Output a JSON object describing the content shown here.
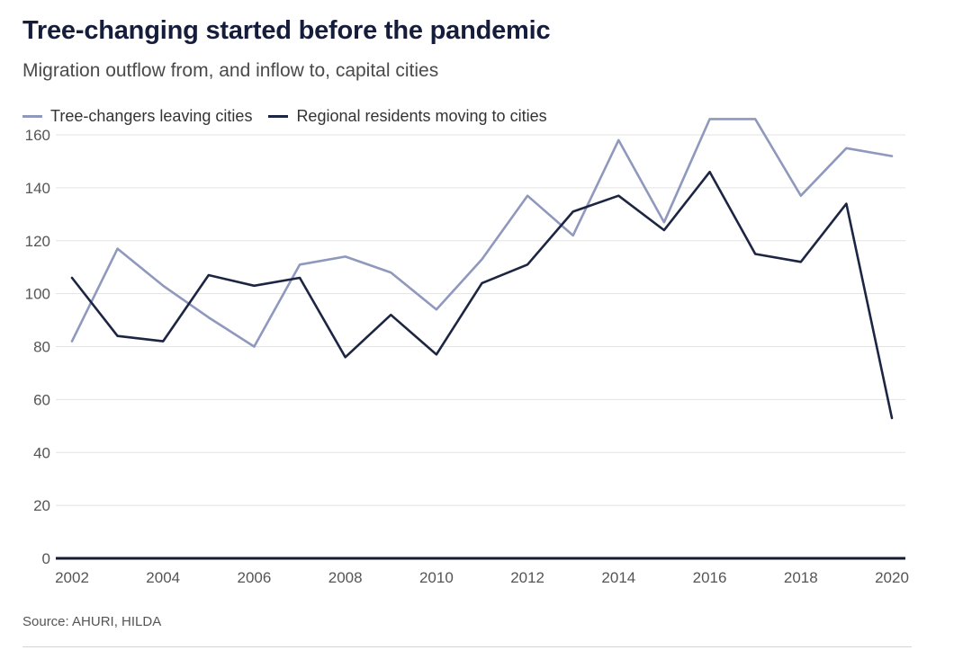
{
  "header": {
    "title": "Tree-changing started before the pandemic",
    "subtitle": "Migration outflow from, and inflow to, capital cities"
  },
  "footer": {
    "source": "Source: AHURI, HILDA"
  },
  "chart_data": {
    "type": "line",
    "title": "Tree-changing started before the pandemic",
    "subtitle": "Migration outflow from, and inflow to, capital cities",
    "xlabel": "",
    "ylabel": "",
    "x": [
      2002,
      2003,
      2004,
      2005,
      2006,
      2007,
      2008,
      2009,
      2010,
      2011,
      2012,
      2013,
      2014,
      2015,
      2016,
      2017,
      2018,
      2019,
      2020
    ],
    "series": [
      {
        "name": "Tree-changers leaving cities",
        "color": "#8f98bd",
        "values": [
          82,
          117,
          103,
          91,
          80,
          111,
          114,
          108,
          94,
          113,
          137,
          122,
          158,
          127,
          166,
          166,
          137,
          155,
          152
        ]
      },
      {
        "name": "Regional residents moving to cities",
        "color": "#1c2542",
        "values": [
          106,
          84,
          82,
          107,
          103,
          106,
          76,
          92,
          77,
          104,
          111,
          131,
          137,
          124,
          146,
          115,
          112,
          134,
          53
        ]
      }
    ],
    "xlim": [
      2002,
      2020
    ],
    "ylim": [
      0,
      170
    ],
    "xticks": [
      "2002",
      "2004",
      "2006",
      "2008",
      "2010",
      "2012",
      "2014",
      "2016",
      "2018",
      "2020"
    ],
    "yticks": [
      "0",
      "20",
      "40",
      "60",
      "80",
      "100",
      "120",
      "140",
      "160"
    ],
    "grid": true,
    "legend_position": "top-left"
  }
}
